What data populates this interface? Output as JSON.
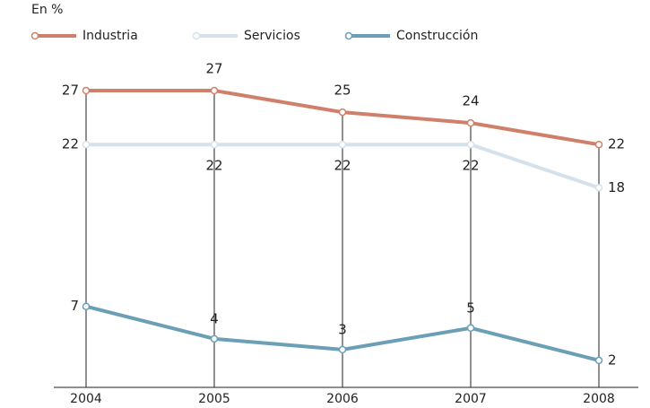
{
  "chart_data": {
    "type": "line",
    "subtitle": "En %",
    "categories": [
      "2004",
      "2005",
      "2006",
      "2007",
      "2008"
    ],
    "series": [
      {
        "name": "Industria",
        "color": "#d0806a",
        "values": [
          27,
          27,
          25,
          24,
          22
        ]
      },
      {
        "name": "Servicios",
        "color": "#d6e2ea",
        "values": [
          22,
          22,
          22,
          22,
          18
        ]
      },
      {
        "name": "Construcción",
        "color": "#6a9fb5",
        "values": [
          7,
          4,
          3,
          5,
          2
        ]
      }
    ],
    "ylim": [
      -0.5,
      28
    ],
    "legend": "top-left"
  }
}
